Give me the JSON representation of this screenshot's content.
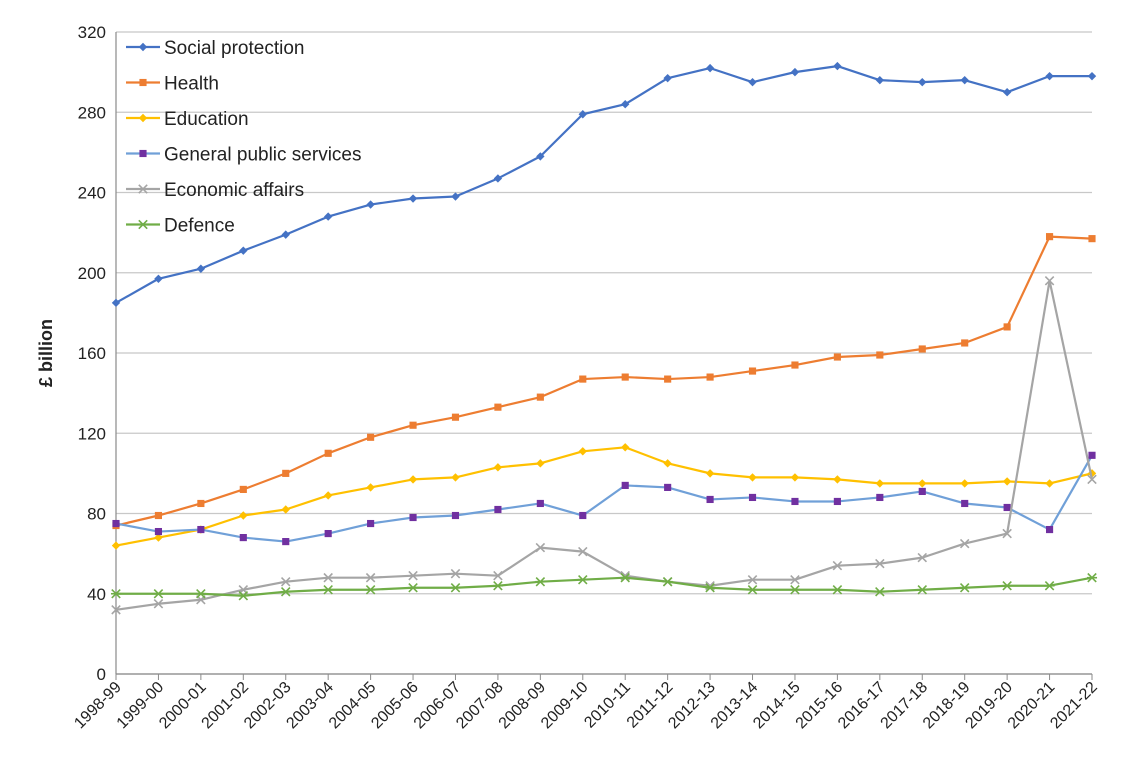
{
  "chart_data": {
    "type": "line",
    "title": "",
    "xlabel": "",
    "ylabel": "£ billion",
    "ylim": [
      0,
      320
    ],
    "yticks": [
      0,
      40,
      80,
      120,
      160,
      200,
      240,
      280,
      320
    ],
    "grid": true,
    "legend_position": "top-left",
    "categories": [
      "1998-99",
      "1999-00",
      "2000-01",
      "2001-02",
      "2002-03",
      "2003-04",
      "2004-05",
      "2005-06",
      "2006-07",
      "2007-08",
      "2008-09",
      "2009-10",
      "2010-11",
      "2011-12",
      "2012-13",
      "2013-14",
      "2014-15",
      "2015-16",
      "2016-17",
      "2017-18",
      "2018-19",
      "2019-20",
      "2020-21",
      "2021-22"
    ],
    "series": [
      {
        "name": "Social protection",
        "color": "#4472C4",
        "marker": "diamond",
        "values": [
          185,
          197,
          202,
          211,
          219,
          228,
          234,
          237,
          238,
          247,
          258,
          279,
          284,
          297,
          302,
          295,
          300,
          303,
          296,
          295,
          296,
          290,
          298,
          298
        ]
      },
      {
        "name": "Health",
        "color": "#ED7D31",
        "marker": "square",
        "values": [
          74,
          79,
          85,
          92,
          100,
          110,
          118,
          124,
          128,
          133,
          138,
          147,
          148,
          147,
          148,
          151,
          154,
          158,
          159,
          162,
          165,
          173,
          218,
          217
        ]
      },
      {
        "name": "Education",
        "color": "#FFC000",
        "marker": "diamond",
        "values": [
          64,
          68,
          72,
          79,
          82,
          89,
          93,
          97,
          98,
          103,
          105,
          111,
          113,
          105,
          100,
          98,
          98,
          97,
          95,
          95,
          95,
          96,
          95,
          100
        ]
      },
      {
        "name": "General public services",
        "color": "#70A0D8",
        "markerColor": "#7030A0",
        "marker": "square",
        "values": [
          75,
          71,
          72,
          68,
          66,
          70,
          75,
          78,
          79,
          82,
          85,
          79,
          94,
          93,
          87,
          88,
          86,
          86,
          88,
          91,
          85,
          83,
          72,
          109
        ]
      },
      {
        "name": "Economic affairs",
        "color": "#A5A5A5",
        "marker": "x",
        "values": [
          32,
          35,
          37,
          42,
          46,
          48,
          48,
          49,
          50,
          49,
          63,
          61,
          49,
          46,
          44,
          47,
          47,
          54,
          55,
          58,
          65,
          70,
          196,
          97
        ]
      },
      {
        "name": "Defence",
        "color": "#70AD47",
        "marker": "star",
        "values": [
          40,
          40,
          40,
          39,
          41,
          42,
          42,
          43,
          43,
          44,
          46,
          47,
          48,
          46,
          43,
          42,
          42,
          42,
          41,
          42,
          43,
          44,
          44,
          48
        ]
      }
    ]
  }
}
